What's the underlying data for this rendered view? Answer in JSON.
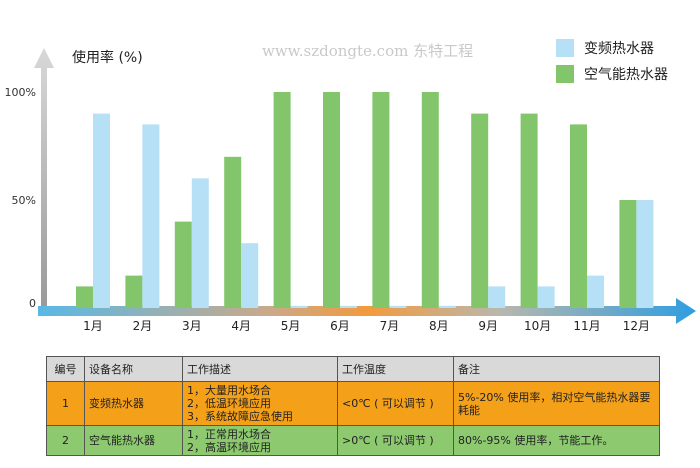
{
  "watermark": "www.szdongte.com 东特工程",
  "chart_data": {
    "type": "bar",
    "ylabel": "使用率 (%)",
    "yticks": [
      "0",
      "50%",
      "100%"
    ],
    "ylim": [
      0,
      100
    ],
    "categories": [
      "1月",
      "2月",
      "3月",
      "4月",
      "5月",
      "6月",
      "7月",
      "8月",
      "9月",
      "10月",
      "11月",
      "12月"
    ],
    "series": [
      {
        "name": "空气能热水器",
        "color": "#82c56b",
        "values": [
          10,
          15,
          40,
          70,
          100,
          100,
          100,
          100,
          90,
          90,
          85,
          50
        ]
      },
      {
        "name": "变频热水器",
        "color": "#b5e0f6",
        "values": [
          90,
          85,
          60,
          30,
          1,
          1,
          1,
          1,
          10,
          10,
          15,
          50
        ]
      }
    ],
    "legend": "top-right"
  },
  "legend": {
    "item1": {
      "label": "变频热水器",
      "color": "#b5e0f6"
    },
    "item2": {
      "label": "空气能热水器",
      "color": "#82c56b"
    }
  },
  "table": {
    "headers": [
      "编号",
      "设备名称",
      "工作描述",
      "工作温度",
      "备注"
    ],
    "header_bg": "#d9d9d9",
    "rows": [
      {
        "bg": "#f5a019",
        "id": "1",
        "name": "变频热水器",
        "desc": [
          "1，大量用水场合",
          "2，低温环境应用",
          "3，系统故障应急使用"
        ],
        "temp": "<0℃ ( 可以调节 )",
        "note": "5%-20% 使用率，相对空气能热水器要耗能"
      },
      {
        "bg": "#8dc96f",
        "id": "2",
        "name": "空气能热水器",
        "desc": [
          "1，正常用水场合",
          "2，高温环境应用"
        ],
        "temp": ">0℃ ( 可以调节 )",
        "note": "80%-95% 使用率，节能工作。"
      }
    ]
  }
}
